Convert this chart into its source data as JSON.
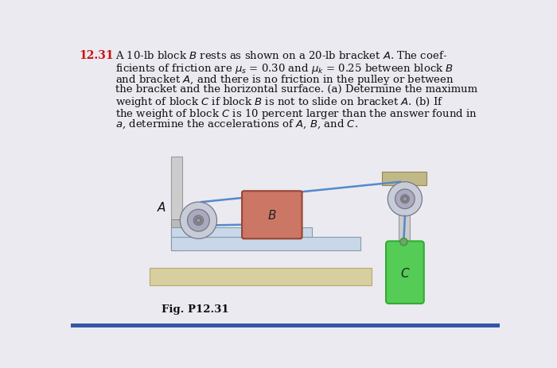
{
  "bg_color": "#eaeaf0",
  "title_num": "12.31",
  "title_text_lines": [
    "A 10-lb block $B$ rests as shown on a 20-lb bracket $A$. The coef-",
    "ficients of friction are $\\mu_s$ = 0.30 and $\\mu_k$ = 0.25 between block $B$",
    "and bracket $A$, and there is no friction in the pulley or between",
    "the bracket and the horizontal surface. (a) Determine the maximum",
    "weight of block $C$ if block $B$ is not to slide on bracket $A$. (b) If",
    "the weight of block $C$ is 10 percent larger than the answer found in",
    "$a$, determine the accelerations of $A$, $B$, and $C$."
  ],
  "fig_label": "Fig. P12.31",
  "bg_color_border": "#3355aa",
  "bracket_color": "#c8d8e8",
  "bracket_edge": "#8899aa",
  "floor_color": "#d8cfa0",
  "floor_edge": "#bba870",
  "block_B_color": "#cc7766",
  "block_B_edge": "#994433",
  "block_C_color": "#55cc55",
  "block_C_edge": "#33aa33",
  "pulley_outer": "#c8ccd8",
  "pulley_mid": "#aaaabc",
  "pulley_inner": "#888898",
  "pulley_edge": "#777788",
  "rope_color": "#5588cc",
  "wall_color": "#cccccc",
  "wall_edge": "#999999",
  "support_beam_color": "#c0b888",
  "support_beam_edge": "#998844",
  "hook_color": "#66aa66",
  "hook_edge": "#448844",
  "axle_color": "#bbbbbb",
  "axle_edge": "#888888"
}
